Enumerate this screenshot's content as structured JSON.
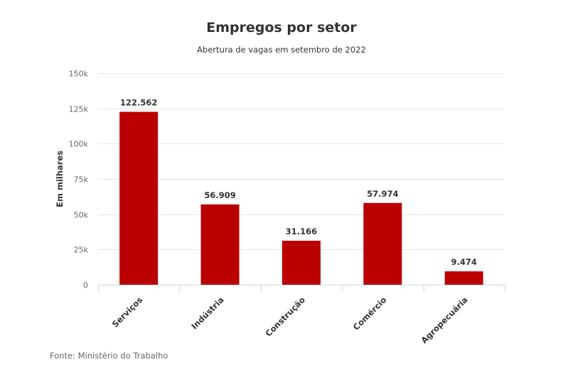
{
  "chart_data": {
    "type": "bar",
    "title": "Empregos por setor",
    "subtitle": "Abertura de vagas em setembro de 2022",
    "xlabel": "",
    "ylabel": "Em milhares",
    "categories": [
      "Serviços",
      "Indústria",
      "Construção",
      "Comércio",
      "Agropecuária"
    ],
    "values": [
      122562,
      56909,
      31166,
      57974,
      9474
    ],
    "data_labels": [
      "122.562",
      "56.909",
      "31.166",
      "57.974",
      "9.474"
    ],
    "ylim": [
      0,
      150000
    ],
    "yticks": [
      0,
      25000,
      50000,
      75000,
      100000,
      125000,
      150000
    ],
    "ytick_labels": [
      "0",
      "25k",
      "50k",
      "75k",
      "100k",
      "125k",
      "150k"
    ],
    "grid": true,
    "legend": "none",
    "bar_color": "#bb0000",
    "source": "Fonte: Ministério do Trabalho"
  }
}
